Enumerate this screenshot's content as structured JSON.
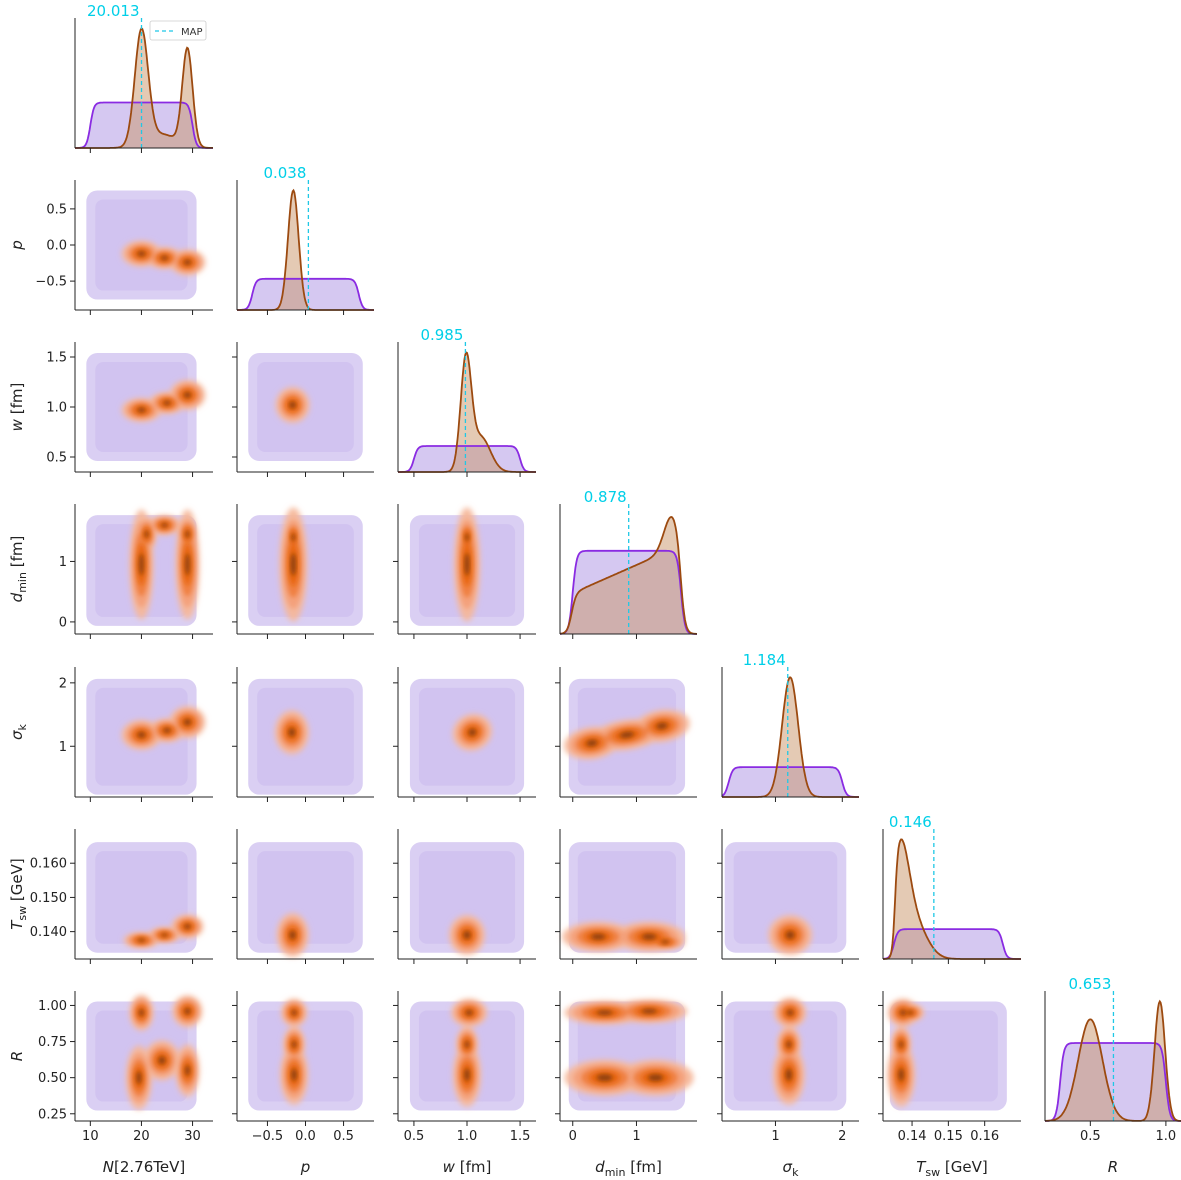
{
  "chart_data": {
    "type": "corner",
    "title": "",
    "legend": {
      "label": "MAP",
      "placement": "top-right"
    },
    "colors": {
      "posterior": "#e8650e",
      "posterior_dark": "#8b3e0b",
      "posterior_line": "#9c4a10",
      "prior": "#b29ae6",
      "prior_line": "#8a2be2",
      "map_line": "#1fc8e6",
      "map_text": "#00cfe8"
    },
    "parameters": [
      {
        "key": "N",
        "label": "N[2.76TeV]",
        "range": [
          7,
          34
        ],
        "ticks": [
          10,
          20,
          30
        ],
        "tick_labels": [
          "10",
          "20",
          "30"
        ],
        "map": 20.013,
        "map_label": "20.013",
        "prior_range": [
          10,
          30
        ],
        "posterior_modes": [
          {
            "mu": 20,
            "sigma": 1.3,
            "w": 1.0
          },
          {
            "mu": 29,
            "sigma": 1.0,
            "w": 0.85
          },
          {
            "mu": 24,
            "sigma": 3,
            "w": 0.12
          }
        ]
      },
      {
        "key": "p",
        "label": "p",
        "range": [
          -0.9,
          0.9
        ],
        "ticks": [
          -0.5,
          0.0,
          0.5
        ],
        "tick_labels": [
          "−0.5",
          "0.0",
          "0.5"
        ],
        "map": 0.038,
        "map_label": "0.038",
        "prior_range": [
          -0.7,
          0.7
        ],
        "posterior_modes": [
          {
            "mu": -0.16,
            "sigma": 0.07,
            "w": 1.0
          }
        ]
      },
      {
        "key": "w",
        "label": "w [fm]",
        "range": [
          0.35,
          1.65
        ],
        "ticks": [
          0.5,
          1.0,
          1.5
        ],
        "tick_labels": [
          "0.5",
          "1.0",
          "1.5"
        ],
        "map": 0.985,
        "map_label": "0.985",
        "prior_range": [
          0.5,
          1.5
        ],
        "posterior_modes": [
          {
            "mu": 0.99,
            "sigma": 0.05,
            "w": 1.0
          },
          {
            "mu": 1.13,
            "sigma": 0.09,
            "w": 0.32
          }
        ]
      },
      {
        "key": "d",
        "label": "d_min [fm]",
        "label_main": "d",
        "label_sub": "min",
        "label_unit": " [fm]",
        "range": [
          -0.2,
          1.95
        ],
        "ticks": [
          0,
          1
        ],
        "tick_labels": [
          "0",
          "1"
        ],
        "map": 0.878,
        "map_label": "0.878",
        "prior_range": [
          0.0,
          1.7
        ],
        "posterior_modes": []
      },
      {
        "key": "s",
        "label": "σ_k",
        "label_main": "σ",
        "label_sub": "k",
        "range": [
          0.2,
          2.25
        ],
        "ticks": [
          1,
          2
        ],
        "tick_labels": [
          "1",
          "2"
        ],
        "map": 1.184,
        "map_label": "1.184",
        "prior_range": [
          0.3,
          2.0
        ],
        "posterior_modes": [
          {
            "mu": 1.22,
            "sigma": 0.12,
            "w": 1.0
          }
        ]
      },
      {
        "key": "T",
        "label": "T_sw [GeV]",
        "label_main": "T",
        "label_sub": "sw",
        "label_unit": " [GeV]",
        "range": [
          0.132,
          0.17
        ],
        "ticks": [
          0.14,
          0.15,
          0.16
        ],
        "tick_labels": [
          "0.14",
          "0.15",
          "0.16"
        ],
        "ytick_labels": [
          "0.140",
          "0.150",
          "0.160"
        ],
        "map": 0.146,
        "map_label": "0.146",
        "prior_range": [
          0.135,
          0.165
        ],
        "posterior_modes": []
      },
      {
        "key": "R",
        "label": "R",
        "range": [
          0.2,
          1.1
        ],
        "ticks": [
          0.25,
          0.5,
          0.75,
          1.0
        ],
        "tick_labels": [
          "0.25",
          "0.50",
          "0.75",
          "1.00"
        ],
        "xticks": [
          0.5,
          1.0
        ],
        "xtick_labels": [
          "0.5",
          "1.0"
        ],
        "map": 0.653,
        "map_label": "0.653",
        "prior_range": [
          0.3,
          1.0
        ],
        "posterior_modes": [
          {
            "mu": 0.5,
            "sigma": 0.08,
            "w": 0.85
          },
          {
            "mu": 0.96,
            "sigma": 0.035,
            "w": 1.0
          }
        ]
      }
    ]
  }
}
